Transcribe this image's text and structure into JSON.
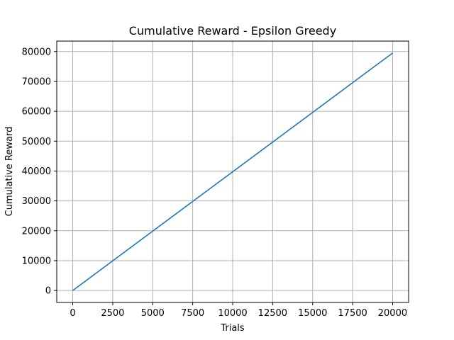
{
  "chart_data": {
    "type": "line",
    "title": "Cumulative Reward - Epsilon Greedy",
    "xlabel": "Trials",
    "ylabel": "Cumulative Reward",
    "xlim": [
      -1000,
      21000
    ],
    "ylim": [
      -4000,
      83500
    ],
    "x_ticks": [
      0,
      2500,
      5000,
      7500,
      10000,
      12500,
      15000,
      17500,
      20000
    ],
    "y_ticks": [
      0,
      10000,
      20000,
      30000,
      40000,
      50000,
      60000,
      70000,
      80000
    ],
    "grid": true,
    "series": [
      {
        "color": "#1f77b4",
        "x": [
          0,
          20000
        ],
        "y": [
          0,
          79500
        ]
      }
    ]
  }
}
